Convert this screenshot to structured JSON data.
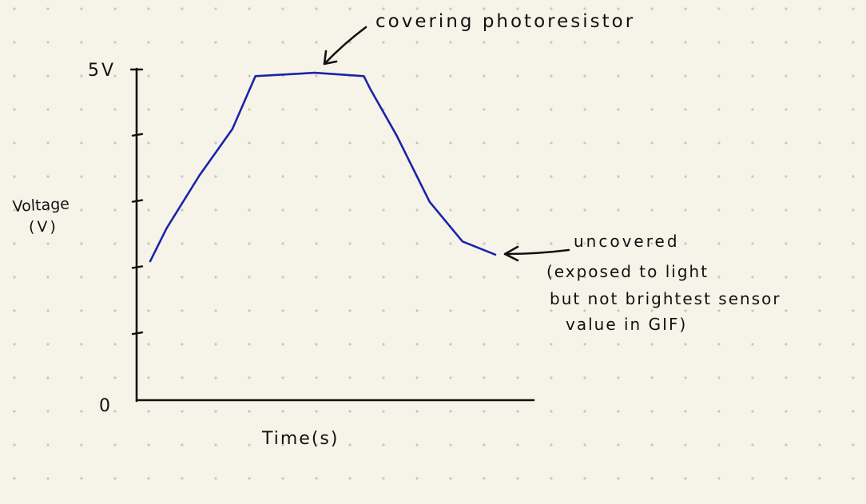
{
  "colors": {
    "paper": "#f6f4e8",
    "dots": "#c9c7bb",
    "ink": "#111111",
    "series": "#1a24a8"
  },
  "chart_data": {
    "type": "line",
    "title": "",
    "xlabel": "Time(s)",
    "ylabel": [
      "Voltage",
      "(V)"
    ],
    "y_tick_labels": {
      "top": "5V",
      "origin": "0"
    },
    "y_minor_ticks": 4,
    "ylim": [
      0,
      5
    ],
    "grid": false,
    "series": [
      {
        "values_description_free": true,
        "x": [
          0,
          0.5,
          1.5,
          2.5,
          3.2,
          5.0,
          6.5,
          6.7,
          7.5,
          8.5,
          9.5,
          10.5
        ],
        "y": [
          2.1,
          2.6,
          3.4,
          4.1,
          4.9,
          4.95,
          4.9,
          4.7,
          4.0,
          3.0,
          2.4,
          2.2
        ]
      }
    ],
    "annotations": [
      {
        "id": "top",
        "lines": [
          "covering photoresistor"
        ]
      },
      {
        "id": "end",
        "lines": [
          "uncovered",
          "(exposed to light",
          "but not brightest sensor",
          "value in GIF)"
        ]
      }
    ]
  }
}
